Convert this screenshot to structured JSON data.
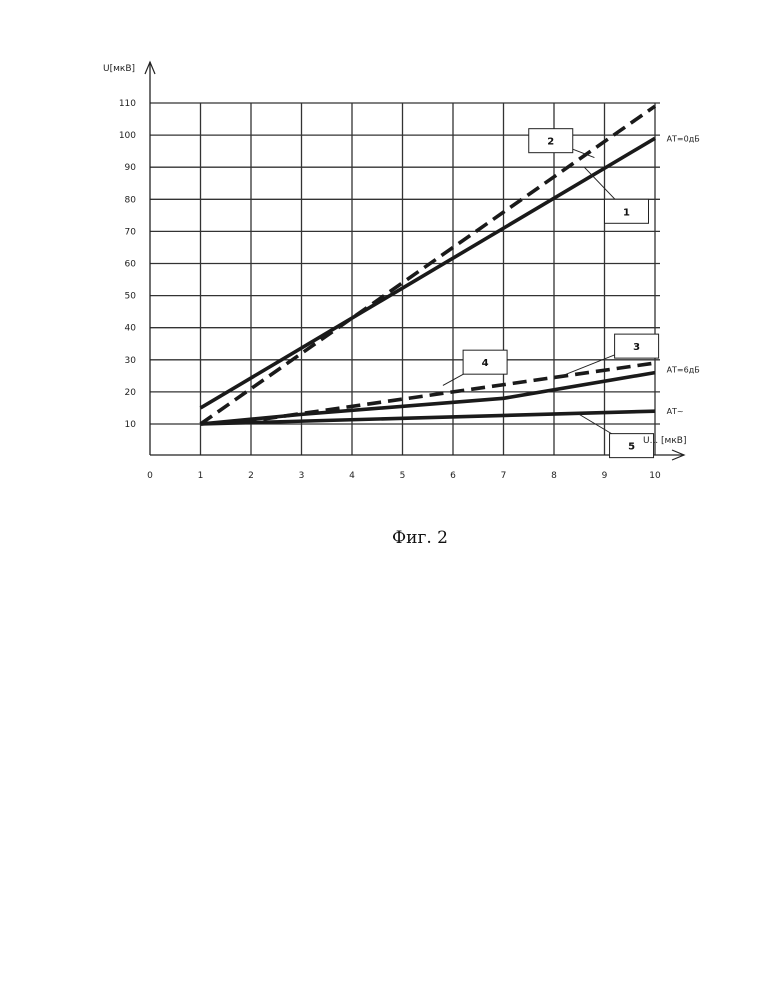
{
  "chart_data": {
    "type": "line",
    "ylabel": "U[мкВ]",
    "xlabel": "U... [мкВ]",
    "x_ticks": [
      "0",
      "1",
      "2",
      "3",
      "4",
      "5",
      "6",
      "7",
      "8",
      "9",
      "10"
    ],
    "y_ticks": [
      "10",
      "20",
      "30",
      "40",
      "50",
      "60",
      "70",
      "80",
      "90",
      "100",
      "110"
    ],
    "xlim": [
      0,
      10
    ],
    "ylim": [
      0,
      110
    ],
    "grid": true,
    "series": [
      {
        "label": "1",
        "style": "solid",
        "x": [
          1,
          10
        ],
        "y": [
          15,
          99
        ]
      },
      {
        "label": "2",
        "style": "dashed",
        "x": [
          1,
          10
        ],
        "y": [
          10,
          109
        ]
      },
      {
        "label": "3",
        "style": "solid",
        "x": [
          1,
          3,
          7,
          10
        ],
        "y": [
          10,
          13,
          18,
          26
        ]
      },
      {
        "label": "4",
        "style": "dashed",
        "x": [
          1,
          2,
          6,
          10
        ],
        "y": [
          10,
          11,
          20,
          29
        ]
      },
      {
        "label": "5",
        "style": "solid",
        "x": [
          1,
          10
        ],
        "y": [
          10,
          14
        ]
      }
    ],
    "annotations": [
      {
        "text": "АТ=0дБ",
        "x": 10.15,
        "y": 99
      },
      {
        "text": "АТ=6дБ",
        "x": 10.15,
        "y": 27
      },
      {
        "text": "АТ~",
        "x": 10.15,
        "y": 14
      }
    ],
    "callouts": [
      {
        "label": "2",
        "box": [
          7.5,
          102
        ],
        "to": [
          8.8,
          93
        ]
      },
      {
        "label": "1",
        "box": [
          9.0,
          80
        ],
        "to": [
          8.6,
          90
        ]
      },
      {
        "label": "4",
        "box": [
          6.2,
          33
        ],
        "to": [
          5.8,
          22
        ]
      },
      {
        "label": "3",
        "box": [
          9.2,
          38
        ],
        "to": [
          8.0,
          24
        ]
      },
      {
        "label": "5",
        "box": [
          9.1,
          7
        ],
        "to": [
          8.5,
          13
        ]
      }
    ]
  },
  "caption": "Фиг. 2"
}
